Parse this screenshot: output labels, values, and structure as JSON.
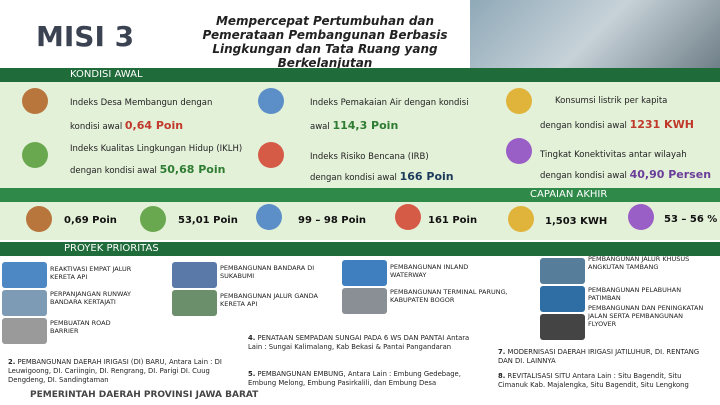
{
  "header": {
    "label": "MISI 3",
    "title": "Mempercepat Pertumbuhan dan Pemerataan Pembangunan Berbasis Lingkungan dan Tata Ruang yang Berkelanjutan"
  },
  "kondisi_awal": {
    "heading": "KONDISI AWAL",
    "items": [
      {
        "text_1": "Indeks Desa Membangun dengan",
        "text_2": "kondisi awal",
        "value": "0,64 Poin"
      },
      {
        "text_1": "Indeks Pemakaian Air dengan kondisi",
        "text_2": "awal",
        "value": "114,3 Poin"
      },
      {
        "text_1": "Konsumsi listrik per kapita",
        "text_2": "dengan kondisi awal",
        "value": "1231 KWH"
      },
      {
        "text_1": "Indeks Kualitas Lingkungan Hidup (IKLH)",
        "text_2": "dengan kondisi awal",
        "value": "50,68 Poin"
      },
      {
        "text_1": "Indeks Risiko Bencana (IRB)",
        "text_2": "dengan kondisi awal",
        "value": "166 Poin"
      },
      {
        "text_1": "Tingkat Konektivitas antar wilayah",
        "text_2": "dengan kondisi awal",
        "value": "40,90 Persen"
      }
    ]
  },
  "capaian_akhir": {
    "heading": "CAPAIAN AKHIR",
    "values": [
      "0,69 Poin",
      "53,01 Poin",
      "99 – 98 Poin",
      "161 Poin",
      "1,503 KWH",
      "53 – 56 %"
    ]
  },
  "proyek_prioritas": {
    "heading": "PROYEK PRIORITAS",
    "projects": [
      "REAKTIVASI EMPAT JALUR KERETA API",
      "PERPANJANGAN RUNWAY BANDARA KERTAJATI",
      "PEMBUATAN ROAD BARRIER",
      "PEMBANGUNAN BANDARA DI SUKABUMI",
      "PEMBANGUNAN JALUR GANDA KERETA API",
      "PEMBANGUNAN INLAND WATERWAY",
      "PEMBANGUNAN TERMINAL PARUNG, KABUPATEN BOGOR",
      "PEMBANGUNAN JALUR KHUSUS ANGKUTAN TAMBANG",
      "PEMBANGUNAN PELABUHAN PATIMBAN",
      "PEMBANGUNAN DAN PENINGKATAN JALAN SERTA PEMBANGUNAN FLYOVER"
    ],
    "numbered": [
      {
        "number": "2.",
        "text": "PEMBANGUNAN DAERAH IRIGASI (DI) BARU, Antara Lain : DI Leuwigoong, DI. Cariingin, DI. Rengrang, DI. Parigi DI. Cuug Dengdeng, DI. Sandingtaman"
      },
      {
        "number": "4.",
        "text": "PENATAAN SEMPADAN SUNGAI PADA 6 WS DAN PANTAI Antara Lain : Sungai Kalimalang, Kab Bekasi & Pantai Pangandaran"
      },
      {
        "number": "5.",
        "text": "PEMBANGUNAN EMBUNG, Antara Lain : Embung Gedebage, Embung Melong, Embung Pasirkalili, dan Embung Desa"
      },
      {
        "number": "7.",
        "text": "MODERNISASI DAERAH IRIGASI JATILUHUR, DI. RENTANG DAN DI. LAINNYA"
      },
      {
        "number": "8.",
        "text": "REVITALISASI SITU Antara Lain : Situ Bagendit, Situ Cimanuk Kab. Majalengka, Situ Bagendit, Situ Lengkong"
      }
    ]
  },
  "footer": "PEMERINTAH DAERAH PROVINSI JAWA BARAT"
}
